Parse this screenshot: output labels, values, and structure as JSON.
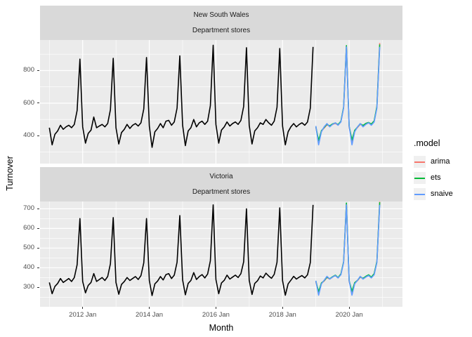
{
  "figure": {
    "y_axis_title": "Turnover",
    "x_axis_title": "Month",
    "colors": {
      "panel_bg": "#EBEBEB",
      "strip_bg": "#D9D9D9",
      "grid": "#FFFFFF",
      "tick_mark": "#333333",
      "tick_label": "#4D4D4D"
    },
    "legend_position": "right",
    "grid": true
  },
  "legend": {
    "title": ".model",
    "items": [
      {
        "label": "arima",
        "color": "#F8766D"
      },
      {
        "label": "ets",
        "color": "#00BA38"
      },
      {
        "label": "snaive",
        "color": "#619CFF"
      }
    ]
  },
  "x_axis": {
    "domain": [
      2010.72,
      2021.6
    ],
    "major_ticks": [
      {
        "t": 2012,
        "label": "2012 Jan"
      },
      {
        "t": 2014,
        "label": "2014 Jan"
      },
      {
        "t": 2016,
        "label": "2016 Jan"
      },
      {
        "t": 2018,
        "label": "2018 Jan"
      },
      {
        "t": 2020,
        "label": "2020 Jan"
      }
    ],
    "minor_years": [
      2011,
      2013,
      2015,
      2017,
      2019,
      2021
    ]
  },
  "chart_data": [
    {
      "type": "line",
      "facet": {
        "state": "New South Wales",
        "industry": "Department stores"
      },
      "ylim": [
        230,
        987
      ],
      "ytick_values": [
        400,
        600,
        800
      ],
      "ytick_labels": [
        "400",
        "600",
        "800"
      ],
      "yticks_minor": [
        300,
        500,
        700,
        900
      ],
      "series": [
        {
          "name": "actual",
          "color": "#000000",
          "start_year": 2011,
          "start_month": 1,
          "values": [
            450,
            345,
            410,
            430,
            465,
            440,
            455,
            465,
            450,
            470,
            555,
            870,
            455,
            355,
            415,
            435,
            515,
            450,
            460,
            470,
            455,
            475,
            560,
            875,
            450,
            350,
            420,
            440,
            470,
            445,
            465,
            475,
            460,
            480,
            565,
            880,
            460,
            330,
            425,
            445,
            475,
            450,
            490,
            495,
            465,
            485,
            570,
            890,
            465,
            340,
            430,
            450,
            500,
            455,
            480,
            490,
            470,
            490,
            585,
            955,
            470,
            355,
            435,
            455,
            485,
            460,
            475,
            485,
            470,
            495,
            580,
            940,
            465,
            350,
            430,
            450,
            480,
            470,
            500,
            480,
            465,
            490,
            575,
            935,
            460,
            345,
            425,
            455,
            475,
            455,
            470,
            480,
            465,
            485,
            570,
            945
          ]
        },
        {
          "name": "arima",
          "color": "#F8766D",
          "start_year": 2019,
          "start_month": 1,
          "values": [
            452,
            365,
            428,
            448,
            468,
            458,
            470,
            476,
            466,
            486,
            572,
            950,
            455,
            368,
            431,
            451,
            471,
            461,
            473,
            479,
            469,
            489,
            576,
            968
          ]
        },
        {
          "name": "ets",
          "color": "#00BA38",
          "start_year": 2019,
          "start_month": 1,
          "values": [
            456,
            372,
            431,
            451,
            471,
            461,
            473,
            479,
            469,
            489,
            576,
            953,
            459,
            375,
            434,
            454,
            474,
            464,
            476,
            482,
            472,
            492,
            580,
            960
          ]
        },
        {
          "name": "snaive",
          "color": "#619CFF",
          "start_year": 2019,
          "start_month": 1,
          "values": [
            460,
            345,
            425,
            455,
            475,
            455,
            470,
            480,
            465,
            485,
            570,
            945,
            460,
            345,
            425,
            455,
            475,
            455,
            470,
            480,
            465,
            485,
            570,
            945
          ]
        }
      ]
    },
    {
      "type": "line",
      "facet": {
        "state": "Victoria",
        "industry": "Department stores"
      },
      "ylim": [
        201,
        737
      ],
      "ytick_values": [
        300,
        400,
        500,
        600,
        700
      ],
      "ytick_labels": [
        "300",
        "400",
        "500",
        "600",
        "700"
      ],
      "yticks_minor": [
        250,
        350,
        450,
        550,
        650
      ],
      "series": [
        {
          "name": "actual",
          "color": "#000000",
          "start_year": 2011,
          "start_month": 1,
          "values": [
            325,
            268,
            305,
            320,
            345,
            325,
            335,
            345,
            330,
            350,
            415,
            650,
            330,
            272,
            310,
            325,
            370,
            330,
            340,
            350,
            335,
            355,
            420,
            655,
            325,
            265,
            315,
            330,
            350,
            335,
            345,
            355,
            340,
            360,
            425,
            650,
            335,
            258,
            318,
            332,
            355,
            338,
            365,
            370,
            345,
            362,
            428,
            665,
            338,
            262,
            320,
            335,
            375,
            340,
            355,
            365,
            348,
            368,
            435,
            720,
            340,
            268,
            322,
            336,
            362,
            342,
            352,
            362,
            350,
            370,
            430,
            700,
            336,
            264,
            320,
            334,
            358,
            348,
            372,
            358,
            346,
            366,
            428,
            705,
            334,
            260,
            318,
            336,
            356,
            342,
            352,
            360,
            348,
            364,
            426,
            720
          ]
        },
        {
          "name": "arima",
          "color": "#F8766D",
          "start_year": 2019,
          "start_month": 1,
          "values": [
            328,
            274,
            320,
            332,
            350,
            342,
            352,
            360,
            348,
            366,
            428,
            726,
            330,
            276,
            322,
            334,
            352,
            344,
            354,
            362,
            350,
            368,
            430,
            736
          ]
        },
        {
          "name": "ets",
          "color": "#00BA38",
          "start_year": 2019,
          "start_month": 1,
          "values": [
            332,
            278,
            322,
            334,
            352,
            344,
            354,
            362,
            350,
            368,
            430,
            729,
            334,
            280,
            324,
            336,
            354,
            346,
            356,
            364,
            352,
            370,
            432,
            733
          ]
        },
        {
          "name": "snaive",
          "color": "#619CFF",
          "start_year": 2019,
          "start_month": 1,
          "values": [
            334,
            260,
            318,
            336,
            356,
            342,
            352,
            360,
            348,
            364,
            426,
            720,
            334,
            260,
            318,
            336,
            356,
            342,
            352,
            360,
            348,
            364,
            426,
            720
          ]
        }
      ]
    }
  ]
}
